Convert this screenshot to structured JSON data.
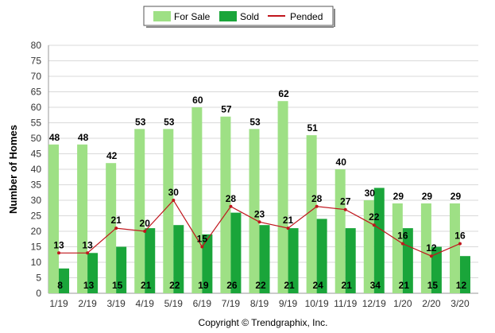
{
  "chart_data": {
    "type": "bar",
    "categories": [
      "1/19",
      "2/19",
      "3/19",
      "4/19",
      "5/19",
      "6/19",
      "7/19",
      "8/19",
      "9/19",
      "10/19",
      "11/19",
      "12/19",
      "1/20",
      "2/20",
      "3/20"
    ],
    "series": [
      {
        "name": "For Sale",
        "type": "bar",
        "color": "#9ee085",
        "values": [
          48,
          48,
          42,
          53,
          53,
          60,
          57,
          53,
          62,
          51,
          40,
          30,
          29,
          29,
          29
        ]
      },
      {
        "name": "Sold",
        "type": "bar",
        "color": "#1aa53a",
        "values": [
          8,
          13,
          15,
          21,
          22,
          19,
          26,
          22,
          21,
          24,
          21,
          34,
          21,
          15,
          12
        ]
      },
      {
        "name": "Pended",
        "type": "line",
        "color": "#c0161d",
        "values": [
          13,
          13,
          21,
          20,
          30,
          15,
          28,
          23,
          21,
          28,
          27,
          22,
          16,
          12,
          16
        ]
      }
    ],
    "ylabel": "Number of Homes",
    "ylim": [
      0,
      80
    ],
    "yticks": [
      0,
      5,
      10,
      15,
      20,
      25,
      30,
      35,
      40,
      45,
      50,
      55,
      60,
      65,
      70,
      75,
      80
    ],
    "grid": true,
    "legend_position": "top-center",
    "footer": "Copyright © Trendgraphix, Inc."
  }
}
